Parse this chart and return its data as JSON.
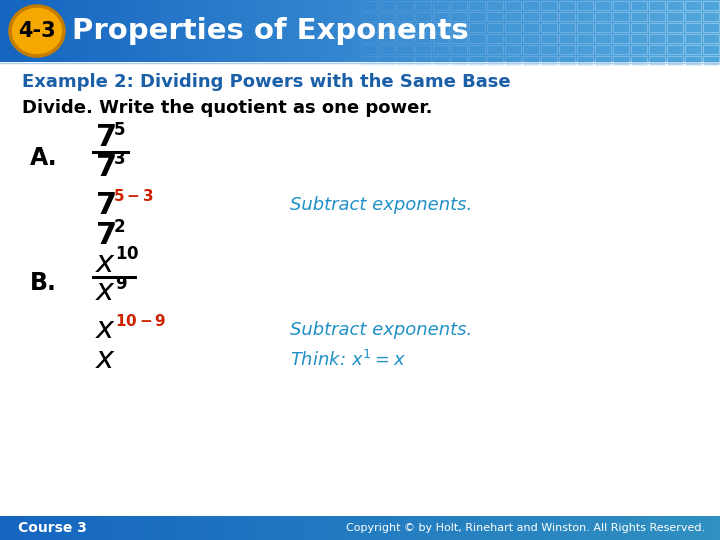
{
  "title_badge": "4-3",
  "title_text": "Properties of Exponents",
  "header_bg_color": "#1565c0",
  "header_gradient_color": "#64b5f6",
  "header_text_color": "#ffffff",
  "badge_bg_color": "#f5a800",
  "badge_border_color": "#c47d00",
  "badge_text_color": "#000000",
  "example_title": "Example 2: Dividing Powers with the Same Base",
  "example_title_color": "#1a5fa8",
  "instruction": "Divide. Write the quotient as one power.",
  "footer_bg_color": "#1565c0",
  "footer_left": "Course 3",
  "footer_right": "Copyright © by Holt, Rinehart and Winston. All Rights Reserved.",
  "footer_text_color": "#ffffff",
  "bg_color": "#ffffff",
  "black": "#000000",
  "red_color": "#cc2200",
  "blue_color": "#2090c8",
  "tile_color": "#4a9fd4"
}
